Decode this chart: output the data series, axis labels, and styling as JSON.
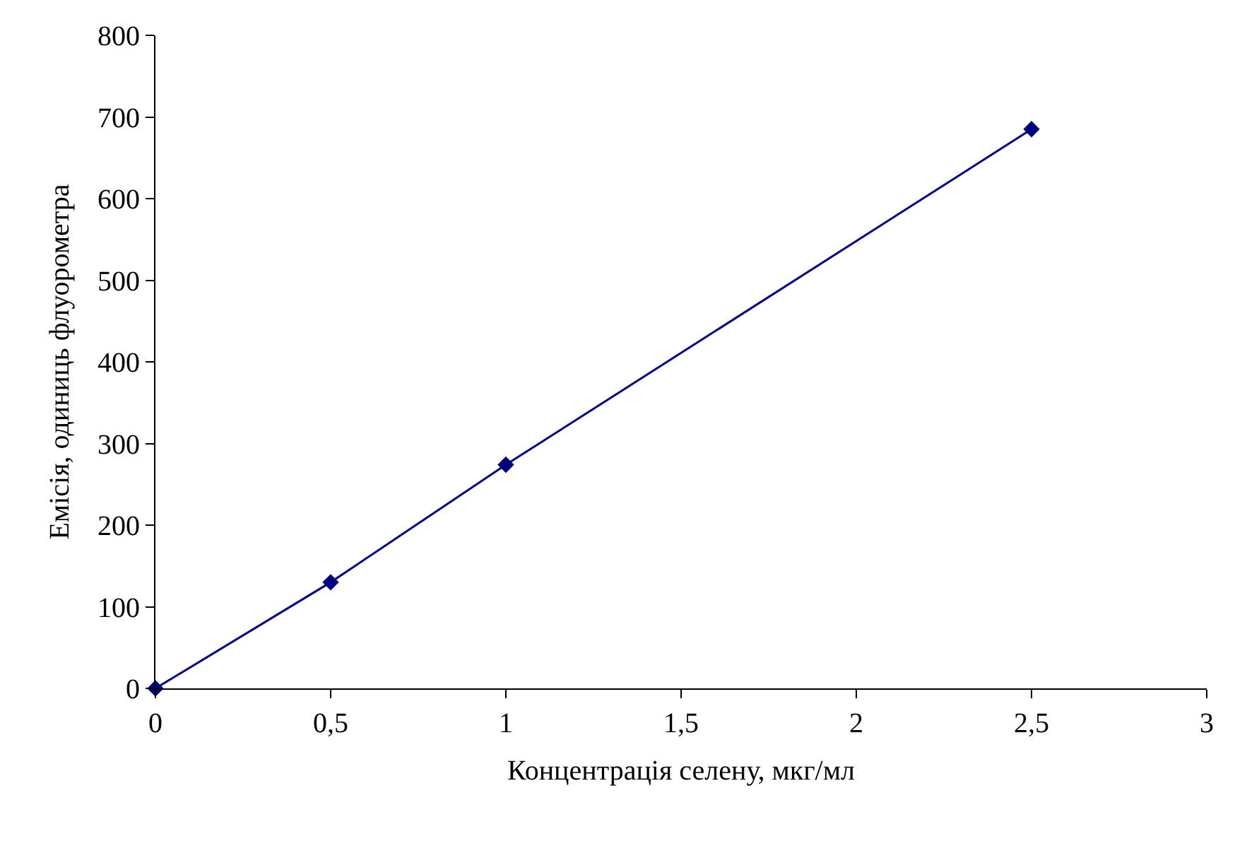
{
  "chart_data": {
    "type": "line",
    "xlabel": "Концентрація селену, мкг/мл",
    "ylabel": "Емісія, одиниць флуорометра",
    "x": [
      0,
      0.5,
      1,
      2.5
    ],
    "series": [
      {
        "color": "#000080",
        "values": [
          0,
          130,
          274,
          685
        ]
      }
    ],
    "xlim": [
      0,
      3
    ],
    "xticks": [
      0,
      {
        "value": 0.5,
        "label": "0,5"
      },
      1,
      {
        "value": 1.5,
        "label": "1,5"
      },
      2,
      {
        "value": 2.5,
        "label": "2,5"
      },
      3
    ],
    "ylim": [
      0,
      800
    ],
    "yticks": [
      0,
      100,
      200,
      300,
      400,
      500,
      600,
      700,
      800
    ],
    "marker": "diamond",
    "line_style": "solid"
  }
}
